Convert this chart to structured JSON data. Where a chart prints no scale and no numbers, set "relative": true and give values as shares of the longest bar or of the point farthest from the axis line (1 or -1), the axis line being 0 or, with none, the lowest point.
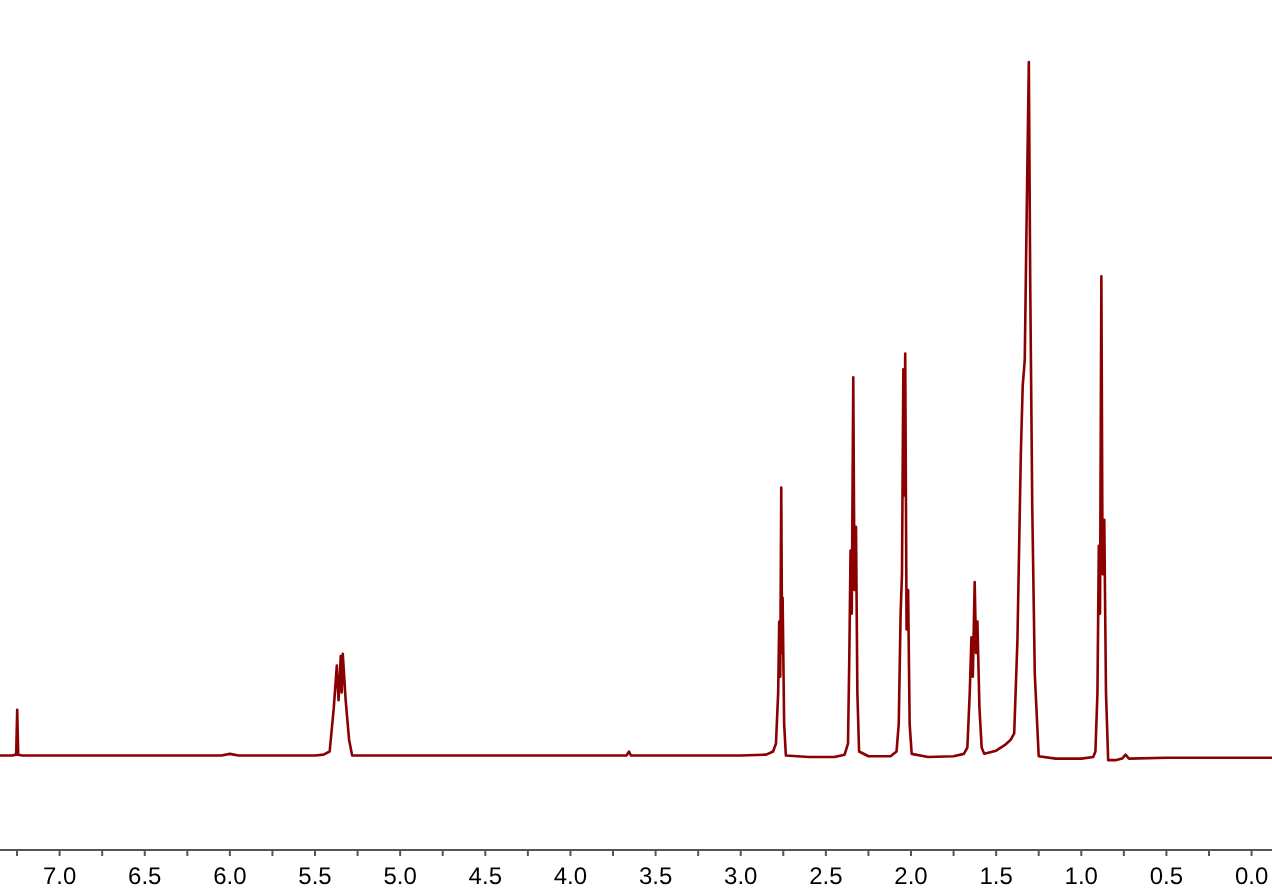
{
  "chart_data": {
    "type": "line",
    "relative": true,
    "xlim": [
      7.35,
      -0.12
    ],
    "xticks": [
      {
        "value": 7.25,
        "label": null
      },
      {
        "value": 7.0,
        "label": "7.0"
      },
      {
        "value": 6.75,
        "label": null
      },
      {
        "value": 6.5,
        "label": "6.5"
      },
      {
        "value": 6.25,
        "label": null
      },
      {
        "value": 6.0,
        "label": "6.0"
      },
      {
        "value": 5.75,
        "label": null
      },
      {
        "value": 5.5,
        "label": "5.5"
      },
      {
        "value": 5.25,
        "label": null
      },
      {
        "value": 5.0,
        "label": "5.0"
      },
      {
        "value": 4.75,
        "label": null
      },
      {
        "value": 4.5,
        "label": "4.5"
      },
      {
        "value": 4.25,
        "label": null
      },
      {
        "value": 4.0,
        "label": "4.0"
      },
      {
        "value": 3.75,
        "label": null
      },
      {
        "value": 3.5,
        "label": "3.5"
      },
      {
        "value": 3.25,
        "label": null
      },
      {
        "value": 3.0,
        "label": "3.0"
      },
      {
        "value": 2.75,
        "label": null
      },
      {
        "value": 2.5,
        "label": "2.5"
      },
      {
        "value": 2.25,
        "label": null
      },
      {
        "value": 2.0,
        "label": "2.0"
      },
      {
        "value": 1.75,
        "label": null
      },
      {
        "value": 1.5,
        "label": "1.5"
      },
      {
        "value": 1.25,
        "label": null
      },
      {
        "value": 1.0,
        "label": "1.0"
      },
      {
        "value": 0.75,
        "label": null
      },
      {
        "value": 0.5,
        "label": "0.5"
      },
      {
        "value": 0.25,
        "label": null
      },
      {
        "value": 0.0,
        "label": "0.0"
      }
    ],
    "x": [
      7.35,
      7.28,
      7.255,
      7.249,
      7.243,
      7.22,
      6.05,
      6.0,
      5.95,
      5.5,
      5.45,
      5.414,
      5.39,
      5.372,
      5.362,
      5.355,
      5.349,
      5.343,
      5.337,
      5.32,
      5.3,
      5.282,
      5.2,
      4.0,
      3.67,
      3.656,
      3.645,
      3.0,
      2.85,
      2.81,
      2.793,
      2.78,
      2.774,
      2.768,
      2.762,
      2.757,
      2.754,
      2.745,
      2.735,
      2.6,
      2.45,
      2.39,
      2.37,
      2.362,
      2.355,
      2.348,
      2.339,
      2.332,
      2.323,
      2.315,
      2.305,
      2.25,
      2.12,
      2.085,
      2.072,
      2.061,
      2.053,
      2.045,
      2.04,
      2.034,
      2.026,
      2.017,
      2.008,
      1.996,
      1.9,
      1.75,
      1.69,
      1.669,
      1.655,
      1.645,
      1.637,
      1.626,
      1.618,
      1.61,
      1.598,
      1.585,
      1.57,
      1.5,
      1.45,
      1.414,
      1.394,
      1.375,
      1.355,
      1.344,
      1.332,
      1.32,
      1.308,
      1.3,
      1.288,
      1.273,
      1.25,
      1.15,
      1.0,
      0.93,
      0.917,
      0.905,
      0.897,
      0.89,
      0.882,
      0.875,
      0.865,
      0.855,
      0.842,
      0.8,
      0.76,
      0.74,
      0.72,
      0.5,
      0.0,
      -0.12
    ],
    "series": [
      {
        "color": "#8b0000",
        "values": [
          0.12,
          0.12,
          0.121,
          0.178,
          0.121,
          0.12,
          0.12,
          0.122,
          0.12,
          0.12,
          0.121,
          0.125,
          0.18,
          0.234,
          0.19,
          0.215,
          0.246,
          0.2,
          0.249,
          0.19,
          0.14,
          0.12,
          0.12,
          0.12,
          0.12,
          0.125,
          0.12,
          0.12,
          0.121,
          0.125,
          0.135,
          0.2,
          0.29,
          0.22,
          0.46,
          0.25,
          0.32,
          0.16,
          0.12,
          0.118,
          0.118,
          0.121,
          0.135,
          0.25,
          0.38,
          0.3,
          0.6,
          0.33,
          0.41,
          0.2,
          0.125,
          0.119,
          0.119,
          0.125,
          0.16,
          0.3,
          0.35,
          0.61,
          0.45,
          0.63,
          0.28,
          0.33,
          0.16,
          0.122,
          0.118,
          0.119,
          0.122,
          0.13,
          0.2,
          0.27,
          0.22,
          0.34,
          0.25,
          0.29,
          0.18,
          0.13,
          0.122,
          0.126,
          0.133,
          0.14,
          0.148,
          0.266,
          0.503,
          0.589,
          0.622,
          0.817,
          1,
          0.723,
          0.437,
          0.223,
          0.119,
          0.116,
          0.116,
          0.118,
          0.125,
          0.2,
          0.386,
          0.3,
          0.728,
          0.35,
          0.419,
          0.2,
          0.114,
          0.114,
          0.116,
          0.121,
          0.116,
          0.117,
          0.117,
          0.117
        ]
      }
    ]
  }
}
